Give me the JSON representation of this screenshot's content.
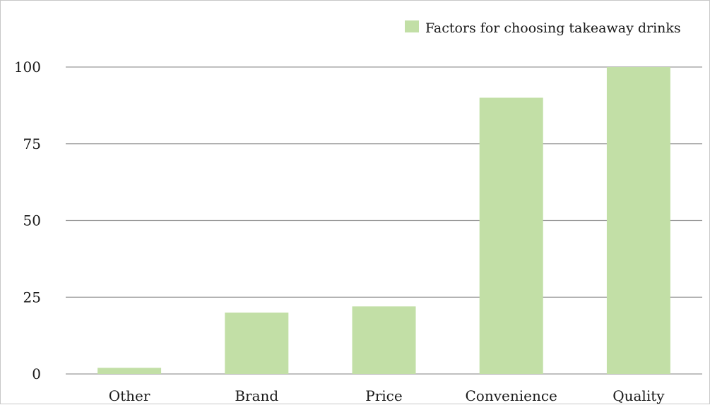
{
  "chart_data": {
    "type": "bar",
    "title": "",
    "xlabel": "",
    "ylabel": "",
    "categories": [
      "Other",
      "Brand",
      "Price",
      "Convenience",
      "Quality"
    ],
    "series": [
      {
        "name": "Factors for choosing takeaway drinks",
        "values": [
          2,
          20,
          22,
          90,
          100
        ],
        "color": "#c2dfa6"
      }
    ],
    "ylim": [
      0,
      100
    ],
    "yticks": [
      "0",
      "25",
      "50",
      "75",
      "100"
    ],
    "grid": true,
    "legend_position": "top-right"
  }
}
